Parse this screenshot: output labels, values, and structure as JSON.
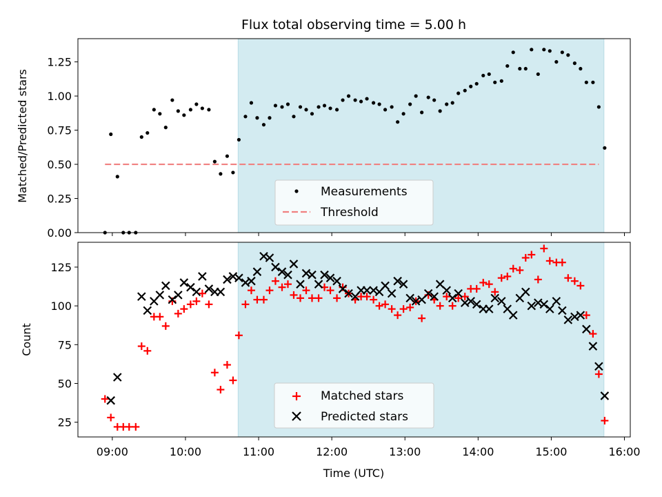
{
  "chart_data": [
    {
      "type": "scatter",
      "title": "Flux total observing time = 5.00 h",
      "ylabel": "Matched/Predicted stars",
      "ylim": [
        0,
        1.42
      ],
      "yticks": [
        0.0,
        0.25,
        0.5,
        0.75,
        1.0,
        1.25
      ],
      "ytick_labels": [
        "0.00",
        "0.25",
        "0.50",
        "0.75",
        "1.00",
        "1.25"
      ],
      "xlim_hours": [
        8.53,
        16.08
      ],
      "shaded_span_hours": [
        10.72,
        15.72
      ],
      "shaded_color": "#d3ebf1",
      "legend_position": "lower center",
      "series": [
        {
          "name": "Measurements",
          "marker": "dot",
          "color": "#000000",
          "x": [
            8.9,
            8.98,
            9.07,
            9.15,
            9.23,
            9.32,
            9.4,
            9.48,
            9.57,
            9.65,
            9.73,
            9.82,
            9.9,
            9.98,
            10.07,
            10.15,
            10.23,
            10.32,
            10.4,
            10.48,
            10.57,
            10.65,
            10.73,
            10.82,
            10.9,
            10.98,
            11.07,
            11.15,
            11.23,
            11.32,
            11.4,
            11.48,
            11.57,
            11.65,
            11.73,
            11.82,
            11.9,
            11.98,
            12.07,
            12.15,
            12.23,
            12.32,
            12.4,
            12.48,
            12.57,
            12.65,
            12.73,
            12.82,
            12.9,
            12.98,
            13.07,
            13.15,
            13.23,
            13.32,
            13.4,
            13.48,
            13.57,
            13.65,
            13.73,
            13.82,
            13.9,
            13.98,
            14.07,
            14.15,
            14.23,
            14.32,
            14.4,
            14.48,
            14.57,
            14.65,
            14.73,
            14.82,
            14.9,
            14.98,
            15.07,
            15.15,
            15.23,
            15.32,
            15.4,
            15.48,
            15.57,
            15.65,
            15.73
          ],
          "y": [
            0.0,
            0.72,
            0.41,
            0.0,
            0.0,
            0.0,
            0.7,
            0.73,
            0.9,
            0.87,
            0.77,
            0.97,
            0.89,
            0.86,
            0.9,
            0.94,
            0.91,
            0.9,
            0.52,
            0.43,
            0.56,
            0.44,
            0.68,
            0.85,
            0.95,
            0.84,
            0.79,
            0.84,
            0.93,
            0.92,
            0.94,
            0.85,
            0.92,
            0.9,
            0.87,
            0.92,
            0.93,
            0.91,
            0.9,
            0.97,
            1.0,
            0.97,
            0.96,
            0.98,
            0.95,
            0.94,
            0.9,
            0.92,
            0.81,
            0.87,
            0.94,
            1.0,
            0.88,
            0.99,
            0.97,
            0.89,
            0.94,
            0.95,
            1.02,
            1.04,
            1.07,
            1.09,
            1.15,
            1.16,
            1.1,
            1.11,
            1.22,
            1.32,
            1.2,
            1.2,
            1.34,
            1.16,
            1.34,
            1.33,
            1.25,
            1.32,
            1.3,
            1.24,
            1.2,
            1.1,
            1.1,
            0.92,
            0.62
          ]
        },
        {
          "name": "Threshold",
          "marker": "dashed-line",
          "color": "#f08080",
          "x": [
            8.9,
            15.65
          ],
          "y": [
            0.5,
            0.5
          ]
        }
      ]
    },
    {
      "type": "scatter",
      "xlabel": "Time (UTC)",
      "ylabel": "Count",
      "ylim": [
        15.5,
        141
      ],
      "yticks": [
        25,
        50,
        75,
        100,
        125
      ],
      "ytick_labels": [
        "25",
        "50",
        "75",
        "100",
        "125"
      ],
      "xlim_hours": [
        8.53,
        16.08
      ],
      "xticks_hours": [
        9,
        10,
        11,
        12,
        13,
        14,
        15,
        16
      ],
      "xtick_labels": [
        "09:00",
        "10:00",
        "11:00",
        "12:00",
        "13:00",
        "14:00",
        "15:00",
        "16:00"
      ],
      "shaded_span_hours": [
        10.72,
        15.72
      ],
      "shaded_color": "#d3ebf1",
      "legend_position": "lower center",
      "series": [
        {
          "name": "Matched stars",
          "marker": "plus",
          "color": "#ff0000",
          "x": [
            8.9,
            8.98,
            9.07,
            9.15,
            9.23,
            9.32,
            9.4,
            9.48,
            9.57,
            9.65,
            9.73,
            9.82,
            9.9,
            9.98,
            10.07,
            10.15,
            10.23,
            10.32,
            10.4,
            10.48,
            10.57,
            10.65,
            10.73,
            10.82,
            10.9,
            10.98,
            11.07,
            11.15,
            11.23,
            11.32,
            11.4,
            11.48,
            11.57,
            11.65,
            11.73,
            11.82,
            11.9,
            11.98,
            12.07,
            12.15,
            12.23,
            12.32,
            12.4,
            12.48,
            12.57,
            12.65,
            12.73,
            12.82,
            12.9,
            12.98,
            13.07,
            13.15,
            13.23,
            13.32,
            13.4,
            13.48,
            13.57,
            13.65,
            13.73,
            13.82,
            13.9,
            13.98,
            14.07,
            14.15,
            14.23,
            14.32,
            14.4,
            14.48,
            14.57,
            14.65,
            14.73,
            14.82,
            14.9,
            14.98,
            15.07,
            15.15,
            15.23,
            15.32,
            15.4,
            15.48,
            15.57,
            15.65,
            15.73
          ],
          "y": [
            40,
            28,
            22,
            22,
            22,
            22,
            74,
            71,
            93,
            93,
            87,
            103,
            95,
            98,
            101,
            103,
            108,
            101,
            57,
            46,
            62,
            52,
            81,
            101,
            110,
            104,
            104,
            110,
            116,
            112,
            114,
            107,
            105,
            110,
            105,
            105,
            112,
            110,
            105,
            112,
            108,
            104,
            106,
            106,
            104,
            100,
            101,
            98,
            94,
            98,
            99,
            103,
            92,
            107,
            104,
            100,
            106,
            100,
            105,
            106,
            111,
            111,
            115,
            114,
            109,
            118,
            119,
            124,
            123,
            131,
            133,
            117,
            137,
            129,
            128,
            128,
            118,
            116,
            113,
            94,
            82,
            56,
            26
          ]
        },
        {
          "name": "Predicted stars",
          "marker": "x",
          "color": "#000000",
          "x": [
            8.98,
            9.07,
            9.4,
            9.48,
            9.57,
            9.65,
            9.73,
            9.82,
            9.9,
            9.98,
            10.07,
            10.15,
            10.23,
            10.32,
            10.4,
            10.48,
            10.57,
            10.65,
            10.73,
            10.82,
            10.9,
            10.98,
            11.07,
            11.15,
            11.23,
            11.32,
            11.4,
            11.48,
            11.57,
            11.65,
            11.73,
            11.82,
            11.9,
            11.98,
            12.07,
            12.15,
            12.23,
            12.32,
            12.4,
            12.48,
            12.57,
            12.65,
            12.73,
            12.82,
            12.9,
            12.98,
            13.07,
            13.15,
            13.23,
            13.32,
            13.4,
            13.48,
            13.57,
            13.65,
            13.73,
            13.82,
            13.9,
            13.98,
            14.07,
            14.15,
            14.23,
            14.32,
            14.4,
            14.48,
            14.57,
            14.65,
            14.73,
            14.82,
            14.9,
            14.98,
            15.07,
            15.15,
            15.23,
            15.32,
            15.4,
            15.48,
            15.57,
            15.65,
            15.73
          ],
          "y": [
            39,
            54,
            106,
            97,
            103,
            107,
            113,
            104,
            107,
            115,
            112,
            109,
            119,
            111,
            109,
            109,
            117,
            119,
            118,
            115,
            116,
            122,
            132,
            131,
            125,
            122,
            120,
            127,
            114,
            121,
            120,
            114,
            120,
            118,
            116,
            111,
            108,
            106,
            110,
            110,
            110,
            109,
            113,
            108,
            116,
            114,
            105,
            103,
            104,
            108,
            106,
            114,
            110,
            105,
            108,
            102,
            103,
            101,
            98,
            98,
            105,
            103,
            98,
            94,
            105,
            109,
            100,
            102,
            101,
            98,
            103,
            97,
            91,
            93,
            94,
            85,
            74,
            61,
            42
          ]
        }
      ]
    }
  ]
}
